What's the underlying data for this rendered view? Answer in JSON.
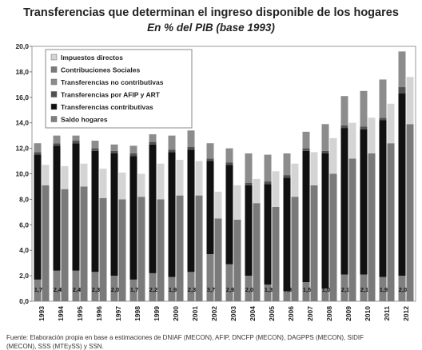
{
  "chart_data": {
    "type": "bar",
    "title": "Transferencias que determinan el ingreso disponible de los hogares",
    "subtitle": "En % del PIB (base 1993)",
    "source": [
      "Fuente: Elaboración propia en base a estimaciones de DNIAF (MECON), AFIP, DNCFP (MECON), DAGPPS (MECON), SIDIF",
      "(MECON), SSS (MTEySS) y SSN."
    ],
    "categories": [
      "1993",
      "1994",
      "1995",
      "1996",
      "1997",
      "1998",
      "1999",
      "2000",
      "2001",
      "2002",
      "2003",
      "2004",
      "2005",
      "2006",
      "2007",
      "2008",
      "2009",
      "2010",
      "2011",
      "2012"
    ],
    "ylim": [
      0,
      20
    ],
    "yticks": [
      {
        "value": 0,
        "label": "0,0"
      },
      {
        "value": 2,
        "label": "2,0"
      },
      {
        "value": 4,
        "label": "4,0"
      },
      {
        "value": 6,
        "label": "6,0"
      },
      {
        "value": 8,
        "label": "8,0"
      },
      {
        "value": 10,
        "label": "10,0"
      },
      {
        "value": 12,
        "label": "12,0"
      },
      {
        "value": 14,
        "label": "14,0"
      },
      {
        "value": 16,
        "label": "16,0"
      },
      {
        "value": 18,
        "label": "18,0"
      },
      {
        "value": 20,
        "label": "20,0"
      }
    ],
    "legend": "upper left",
    "series": [
      {
        "name": "Impuestos directos",
        "color": "#d4d4d4",
        "stack": 1,
        "values": [
          1.6,
          1.8,
          1.8,
          2.3,
          2.1,
          1.8,
          2.8,
          2.8,
          2.7,
          2.1,
          2.7,
          1.9,
          2.8,
          2.6,
          2.6,
          2.8,
          2.8,
          2.8,
          3.1,
          3.7
        ]
      },
      {
        "name": "Contribuciones Sociales",
        "color": "#7a7a7a",
        "stack": 1,
        "values": [
          9.1,
          8.8,
          9.0,
          8.1,
          8.0,
          8.2,
          8.0,
          8.3,
          8.3,
          6.5,
          6.4,
          7.7,
          7.4,
          8.2,
          9.1,
          10.0,
          11.2,
          11.6,
          12.4,
          13.9
        ]
      },
      {
        "name": "Transferencias no contributivas",
        "color": "#8c8c8c",
        "stack": 0,
        "values": [
          0.7,
          0.6,
          0.4,
          0.6,
          0.5,
          0.6,
          0.6,
          1.1,
          1.3,
          1.2,
          1.1,
          2.3,
          2.1,
          1.7,
          1.3,
          2.1,
          2.3,
          2.8,
          3.0,
          2.8
        ]
      },
      {
        "name": "Transferencias por AFIP y ART",
        "color": "#505050",
        "stack": 0,
        "values": [
          0.2,
          0.2,
          0.2,
          0.2,
          0.2,
          0.2,
          0.2,
          0.2,
          0.2,
          0.2,
          0.2,
          0.2,
          0.2,
          0.2,
          0.2,
          0.2,
          0.2,
          0.2,
          0.2,
          0.5
        ]
      },
      {
        "name": "Transferencias contributivas",
        "color": "#111111",
        "stack": 0,
        "values": [
          9.8,
          9.8,
          10.0,
          9.5,
          9.6,
          9.7,
          10.1,
          9.8,
          9.6,
          7.3,
          7.8,
          7.1,
          7.9,
          8.9,
          10.3,
          10.6,
          11.5,
          11.4,
          12.3,
          14.3
        ]
      },
      {
        "name": "Saldo hogares",
        "color": "#7f7f7f",
        "stack": 0,
        "values": [
          1.7,
          2.4,
          2.4,
          2.3,
          2.0,
          1.7,
          2.2,
          1.9,
          2.3,
          3.7,
          2.9,
          2.0,
          1.3,
          0.8,
          1.5,
          1.0,
          2.1,
          2.1,
          1.9,
          2.0
        ],
        "value_labels": [
          "1,7",
          "2,4",
          "2,4",
          "2,3",
          "2,0",
          "1,7",
          "2,2",
          "1,9",
          "2,3",
          "3,7",
          "2,9",
          "2,0",
          "1,3",
          "0,8",
          "1,5",
          "1,0",
          "2,1",
          "2,1",
          "1,9",
          "2,0"
        ]
      }
    ]
  }
}
